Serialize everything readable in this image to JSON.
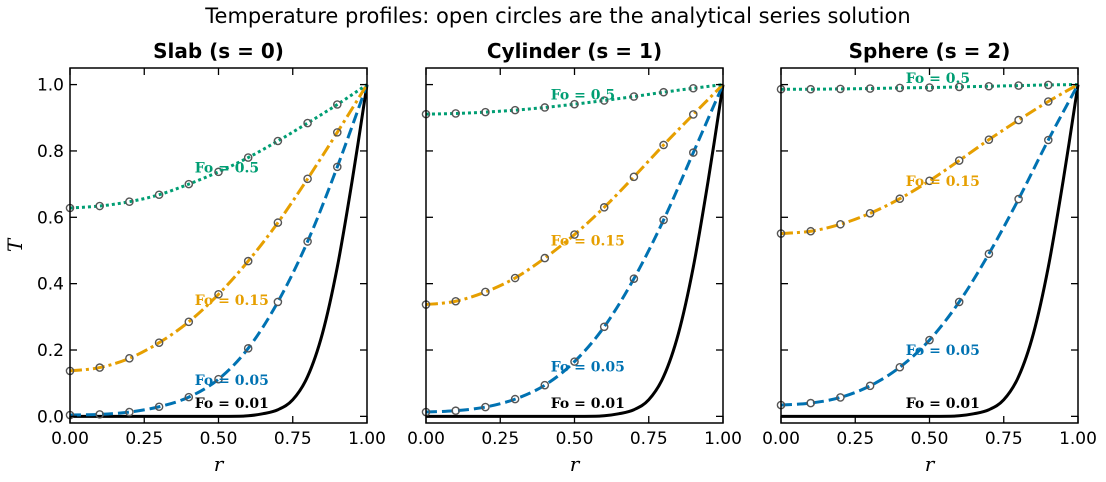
{
  "figure": {
    "title": "Temperature profiles: open circles are the analytical series solution"
  },
  "chart_data": [
    {
      "type": "line",
      "title": "Slab  (s = 0)",
      "xlabel": "r",
      "ylabel": "T",
      "xlim": [
        0,
        1
      ],
      "ylim": [
        -0.02,
        1.05
      ],
      "xticks": [
        "0.00",
        "0.25",
        "0.50",
        "0.75",
        "1.00"
      ],
      "yticks": [
        "0.0",
        "0.2",
        "0.4",
        "0.6",
        "0.8",
        "1.0"
      ],
      "grid": false,
      "series": [
        {
          "name": "Fo = 0.01",
          "color": "#000000",
          "dash": "solid",
          "label_at": [
            0.42,
            0.04
          ],
          "x": [
            0,
            0.5,
            0.6,
            0.65,
            0.7,
            0.75,
            0.8,
            0.85,
            0.9,
            0.95,
            1.0
          ],
          "y": [
            0,
            0,
            0.002,
            0.008,
            0.02,
            0.05,
            0.12,
            0.25,
            0.45,
            0.71,
            1.0
          ],
          "markers": []
        },
        {
          "name": "Fo = 0.05",
          "color": "#0072B2",
          "dash": "dashed",
          "label_at": [
            0.42,
            0.11
          ],
          "x": [
            0,
            0.1,
            0.2,
            0.3,
            0.4,
            0.5,
            0.6,
            0.7,
            0.8,
            0.9,
            1.0
          ],
          "y": [
            0.004,
            0.006,
            0.013,
            0.029,
            0.058,
            0.112,
            0.205,
            0.345,
            0.527,
            0.752,
            1.0
          ],
          "markers": [
            0,
            0.1,
            0.2,
            0.3,
            0.4,
            0.5,
            0.6,
            0.7,
            0.8,
            0.9
          ]
        },
        {
          "name": "Fo = 0.15",
          "color": "#E69F00",
          "dash": "dashdot",
          "label_at": [
            0.42,
            0.35
          ],
          "x": [
            0,
            0.1,
            0.2,
            0.3,
            0.4,
            0.5,
            0.6,
            0.7,
            0.8,
            0.9,
            1.0
          ],
          "y": [
            0.137,
            0.147,
            0.175,
            0.222,
            0.285,
            0.368,
            0.468,
            0.584,
            0.716,
            0.856,
            1.0
          ],
          "markers": [
            0,
            0.1,
            0.2,
            0.3,
            0.4,
            0.5,
            0.6,
            0.7,
            0.8,
            0.9
          ]
        },
        {
          "name": "Fo = 0.5",
          "color": "#009E73",
          "dash": "dotted",
          "label_at": [
            0.42,
            0.75
          ],
          "x": [
            0,
            0.1,
            0.2,
            0.3,
            0.4,
            0.5,
            0.6,
            0.7,
            0.8,
            0.9,
            1.0
          ],
          "y": [
            0.628,
            0.634,
            0.647,
            0.668,
            0.7,
            0.737,
            0.78,
            0.83,
            0.884,
            0.94,
            1.0
          ],
          "markers": [
            0,
            0.1,
            0.2,
            0.3,
            0.4,
            0.5,
            0.6,
            0.7,
            0.8,
            0.9
          ]
        }
      ]
    },
    {
      "type": "line",
      "title": "Cylinder  (s = 1)",
      "xlabel": "r",
      "ylabel": "",
      "xlim": [
        0,
        1
      ],
      "ylim": [
        -0.02,
        1.05
      ],
      "xticks": [
        "0.00",
        "0.25",
        "0.50",
        "0.75",
        "1.00"
      ],
      "yticks": [],
      "grid": false,
      "series": [
        {
          "name": "Fo = 0.01",
          "color": "#000000",
          "dash": "solid",
          "label_at": [
            0.42,
            0.04
          ],
          "x": [
            0,
            0.5,
            0.6,
            0.65,
            0.7,
            0.75,
            0.8,
            0.85,
            0.9,
            0.95,
            1.0
          ],
          "y": [
            0,
            0,
            0.002,
            0.008,
            0.02,
            0.05,
            0.12,
            0.25,
            0.45,
            0.71,
            1.0
          ],
          "markers": []
        },
        {
          "name": "Fo = 0.05",
          "color": "#0072B2",
          "dash": "dashed",
          "label_at": [
            0.42,
            0.15
          ],
          "x": [
            0,
            0.1,
            0.2,
            0.3,
            0.4,
            0.5,
            0.6,
            0.7,
            0.8,
            0.9,
            1.0
          ],
          "y": [
            0.013,
            0.017,
            0.028,
            0.052,
            0.094,
            0.165,
            0.27,
            0.415,
            0.592,
            0.795,
            1.0
          ],
          "markers": [
            0,
            0.1,
            0.2,
            0.3,
            0.4,
            0.5,
            0.6,
            0.7,
            0.8,
            0.9
          ]
        },
        {
          "name": "Fo = 0.15",
          "color": "#E69F00",
          "dash": "dashdot",
          "label_at": [
            0.42,
            0.53
          ],
          "x": [
            0,
            0.1,
            0.2,
            0.3,
            0.4,
            0.5,
            0.6,
            0.7,
            0.8,
            0.9,
            1.0
          ],
          "y": [
            0.337,
            0.347,
            0.375,
            0.417,
            0.477,
            0.548,
            0.63,
            0.722,
            0.818,
            0.91,
            1.0
          ],
          "markers": [
            0,
            0.1,
            0.2,
            0.3,
            0.4,
            0.5,
            0.6,
            0.7,
            0.8,
            0.9
          ]
        },
        {
          "name": "Fo = 0.5",
          "color": "#009E73",
          "dash": "dotted",
          "label_at": [
            0.42,
            0.97
          ],
          "x": [
            0,
            0.1,
            0.2,
            0.3,
            0.4,
            0.5,
            0.6,
            0.7,
            0.8,
            0.9,
            1.0
          ],
          "y": [
            0.911,
            0.913,
            0.917,
            0.923,
            0.931,
            0.941,
            0.952,
            0.964,
            0.977,
            0.989,
            1.0
          ],
          "markers": [
            0,
            0.1,
            0.2,
            0.3,
            0.4,
            0.5,
            0.6,
            0.7,
            0.8,
            0.9
          ]
        }
      ]
    },
    {
      "type": "line",
      "title": "Sphere  (s = 2)",
      "xlabel": "r",
      "ylabel": "",
      "xlim": [
        0,
        1
      ],
      "ylim": [
        -0.02,
        1.05
      ],
      "xticks": [
        "0.00",
        "0.25",
        "0.50",
        "0.75",
        "1.00"
      ],
      "yticks": [],
      "grid": false,
      "series": [
        {
          "name": "Fo = 0.01",
          "color": "#000000",
          "dash": "solid",
          "label_at": [
            0.42,
            0.04
          ],
          "x": [
            0,
            0.5,
            0.6,
            0.65,
            0.7,
            0.75,
            0.8,
            0.85,
            0.9,
            0.95,
            1.0
          ],
          "y": [
            0,
            0,
            0.002,
            0.008,
            0.02,
            0.05,
            0.12,
            0.25,
            0.45,
            0.71,
            1.0
          ],
          "markers": []
        },
        {
          "name": "Fo = 0.05",
          "color": "#0072B2",
          "dash": "dashed",
          "label_at": [
            0.42,
            0.2
          ],
          "x": [
            0,
            0.1,
            0.2,
            0.3,
            0.4,
            0.5,
            0.6,
            0.7,
            0.8,
            0.9,
            1.0
          ],
          "y": [
            0.034,
            0.04,
            0.057,
            0.092,
            0.148,
            0.23,
            0.345,
            0.49,
            0.655,
            0.833,
            1.0
          ],
          "markers": [
            0,
            0.1,
            0.2,
            0.3,
            0.4,
            0.5,
            0.6,
            0.7,
            0.8,
            0.9
          ]
        },
        {
          "name": "Fo = 0.15",
          "color": "#E69F00",
          "dash": "dashdot",
          "label_at": [
            0.42,
            0.71
          ],
          "x": [
            0,
            0.1,
            0.2,
            0.3,
            0.4,
            0.5,
            0.6,
            0.7,
            0.8,
            0.9,
            1.0
          ],
          "y": [
            0.551,
            0.558,
            0.579,
            0.612,
            0.656,
            0.71,
            0.771,
            0.834,
            0.893,
            0.949,
            1.0
          ],
          "markers": [
            0,
            0.1,
            0.2,
            0.3,
            0.4,
            0.5,
            0.6,
            0.7,
            0.8,
            0.9
          ]
        },
        {
          "name": "Fo = 0.5",
          "color": "#009E73",
          "dash": "dotted",
          "label_at": [
            0.42,
            1.02
          ],
          "x": [
            0,
            0.1,
            0.2,
            0.3,
            0.4,
            0.5,
            0.6,
            0.7,
            0.8,
            0.9,
            1.0
          ],
          "y": [
            0.986,
            0.986,
            0.987,
            0.988,
            0.99,
            0.991,
            0.993,
            0.995,
            0.997,
            0.999,
            1.0
          ],
          "markers": [
            0,
            0.1,
            0.2,
            0.3,
            0.4,
            0.5,
            0.6,
            0.7,
            0.8,
            0.9
          ]
        }
      ]
    }
  ]
}
